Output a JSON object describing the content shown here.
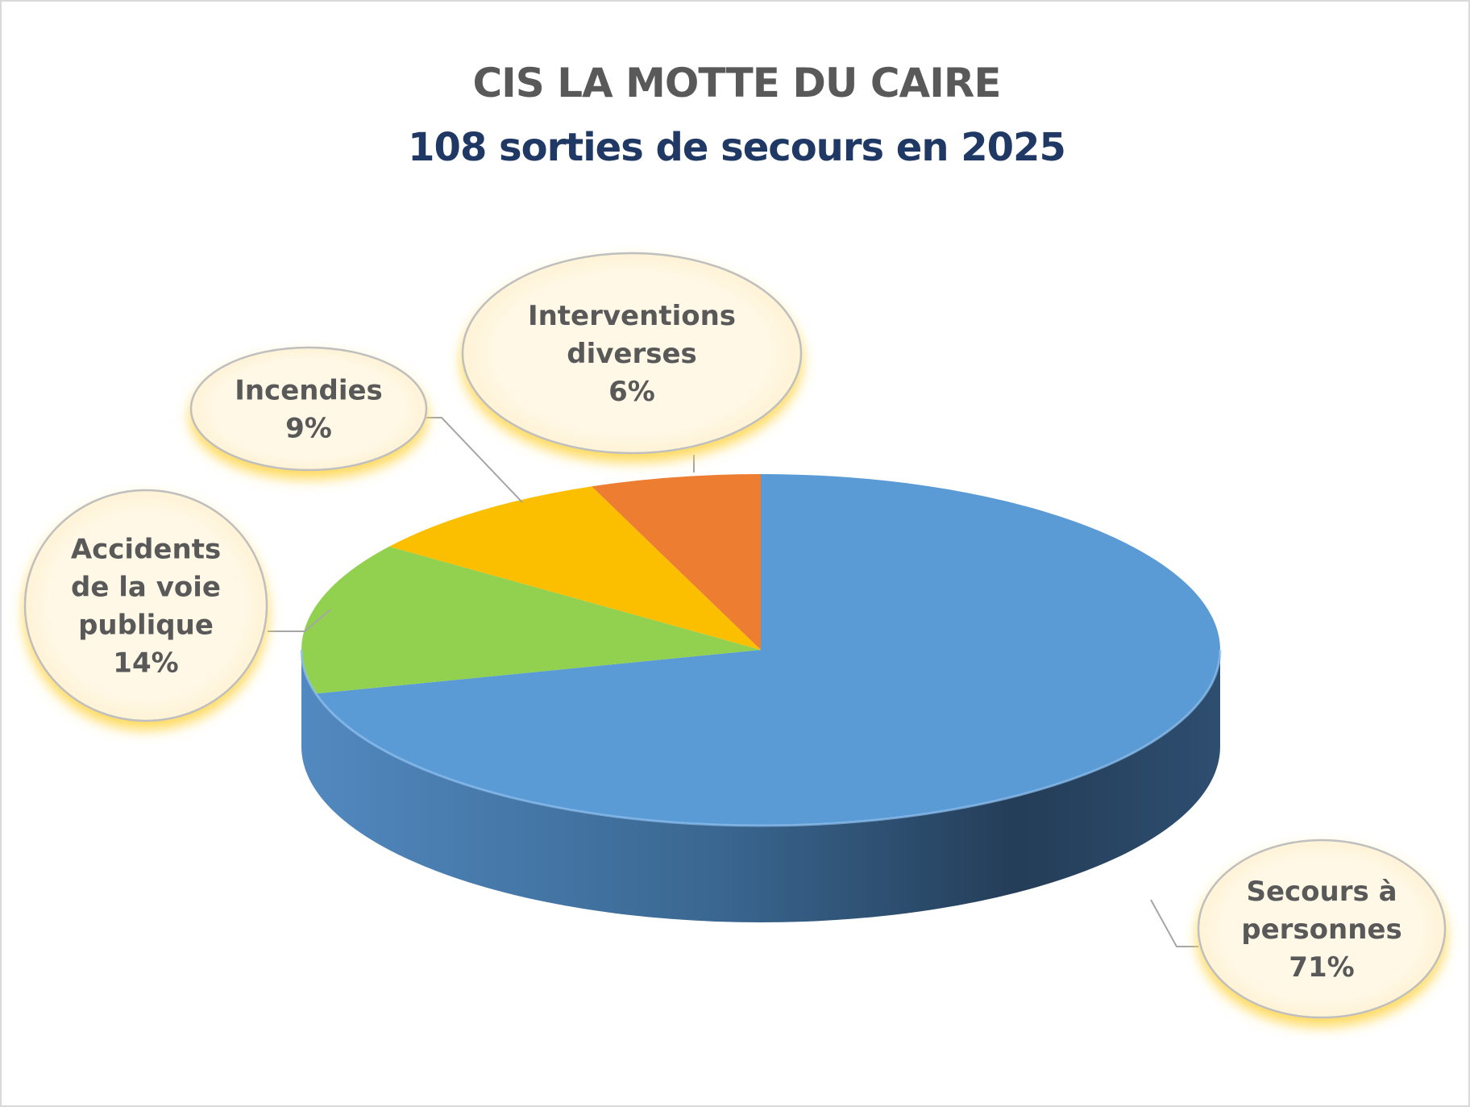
{
  "chart_data": {
    "type": "pie",
    "title": "CIS LA MOTTE DU CAIRE",
    "subtitle": "108 sorties de secours en 2025",
    "slices": [
      {
        "label": [
          "Secours à",
          "personnes"
        ],
        "percent_label": "71%",
        "value": 71,
        "color": "#5b9bd5"
      },
      {
        "label": [
          "Accidents",
          "de la voie",
          "publique"
        ],
        "percent_label": "14%",
        "value": 14,
        "color": "#92d050"
      },
      {
        "label": [
          "Incendies"
        ],
        "percent_label": "9%",
        "value": 9,
        "color": "#fbbf00"
      },
      {
        "label": [
          "Interventions",
          "diverses"
        ],
        "percent_label": "6%",
        "value": 6,
        "color": "#ed7d31"
      }
    ],
    "legend": "none",
    "style": "3d-pie-with-callout-labels"
  }
}
